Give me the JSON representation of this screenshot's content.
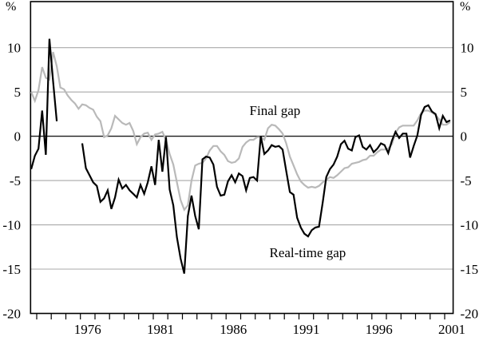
{
  "chart_data": {
    "type": "line",
    "title": "",
    "y_axis": {
      "unit_label": "%",
      "ticks": [
        10,
        5,
        0,
        -5,
        -10,
        -15,
        -20
      ],
      "lim": [
        -20,
        15.2
      ],
      "gridlines": true,
      "labels_on_both_sides": true
    },
    "x_axis": {
      "lim": [
        1972.58,
        2001.58
      ],
      "tick_start_year": 1973,
      "tick_end_year": 2001,
      "tick_interval": 1,
      "labeled_years": [
        1976,
        1981,
        1986,
        1991,
        1996,
        2001
      ]
    },
    "x_step_years": 0.25,
    "frame_color": "#000000",
    "gridline_color": "#a9a9a9",
    "zero_line_color": "#1c1c1c",
    "series": [
      {
        "name": "Final gap",
        "color": "#b9b9b9",
        "width": 2.2,
        "segments": [
          {
            "x_start": 1972.625,
            "values": [
              5.0,
              4.0,
              5.2,
              7.8,
              6.6,
              6.4,
              9.5,
              7.9,
              5.5,
              5.3,
              4.6,
              4.1,
              3.7,
              3.1,
              3.6,
              3.5,
              3.2,
              3.0,
              2.2,
              1.7,
              -0.1,
              0.1,
              0.9,
              2.3,
              1.9,
              1.5,
              1.3,
              1.5,
              0.6,
              -0.9,
              -0.1,
              0.3,
              0.4,
              -0.4,
              0.2,
              0.3,
              0.5,
              -0.4,
              -2.0,
              -3.2,
              -5.2,
              -7.2,
              -8.3,
              -7.8,
              -5.0,
              -3.3,
              -3.1,
              -3.0,
              -2.5,
              -1.6,
              -1.1,
              -1.1,
              -1.7,
              -2.1,
              -2.8,
              -3.0,
              -2.9,
              -2.5,
              -1.2,
              -0.7,
              -0.4,
              -0.4,
              -0.1,
              -0.1,
              -0.4,
              0.9,
              1.3,
              1.2,
              0.8,
              0.3,
              -0.8,
              -2.3,
              -3.3,
              -4.3,
              -5.1,
              -5.5,
              -5.8,
              -5.7,
              -5.8,
              -5.6,
              -5.2,
              -4.9,
              -4.6,
              -4.7,
              -4.4,
              -4.0,
              -3.6,
              -3.5,
              -3.1,
              -3.0,
              -2.9,
              -2.7,
              -2.6,
              -2.2,
              -2.2,
              -1.8,
              -1.5,
              -1.5,
              -1.4,
              -0.9,
              0.4,
              1.0,
              1.2,
              1.2,
              1.2,
              1.2,
              1.8,
              2.6,
              2.9,
              2.9,
              2.7,
              2.4,
              1.9,
              1.3,
              1.3,
              1.6
            ]
          }
        ]
      },
      {
        "name": "Real-time gap",
        "color": "#000000",
        "width": 2.2,
        "segments": [
          {
            "x_start": 1972.625,
            "values": [
              -3.7,
              -2.2,
              -1.4,
              2.9,
              -2.1,
              11.0,
              6.2,
              1.7
            ]
          },
          {
            "x_start": 1976.125,
            "values": [
              -0.8,
              -3.6,
              -4.4,
              -5.2,
              -5.6,
              -7.4,
              -7.0,
              -6.1,
              -8.2,
              -6.9,
              -4.9,
              -5.9,
              -5.5,
              -6.1,
              -6.5,
              -6.9,
              -5.5,
              -6.5,
              -5.2,
              -3.4,
              -5.5,
              -0.4,
              -4.0,
              -0.1,
              -6.0,
              -7.8,
              -11.4,
              -13.8,
              -15.5,
              -9.0,
              -6.7,
              -9.0,
              -10.5,
              -2.6,
              -2.3,
              -2.4,
              -3.2,
              -5.7,
              -6.7,
              -6.6,
              -5.1,
              -4.4,
              -5.2,
              -4.2,
              -4.5,
              -6.1,
              -4.7,
              -4.6,
              -5.0,
              0.0,
              -2.0,
              -1.6,
              -1.0,
              -1.2,
              -1.1,
              -1.5,
              -3.9,
              -6.3,
              -6.6,
              -9.2,
              -10.3,
              -11.0,
              -11.3,
              -10.6,
              -10.3,
              -10.2,
              -7.5,
              -4.6,
              -3.7,
              -3.2,
              -2.3,
              -0.9,
              -0.5,
              -1.4,
              -1.6,
              -0.1,
              0.1,
              -1.2,
              -1.5,
              -1.0,
              -1.8,
              -1.4,
              -0.8,
              -1.0,
              -1.9,
              -0.5,
              0.5,
              -0.2,
              0.3,
              0.3,
              -2.4,
              -1.1,
              0.1,
              2.4,
              3.3,
              3.5,
              2.8,
              2.5,
              0.9,
              2.3,
              1.6,
              1.8
            ]
          }
        ]
      }
    ],
    "annotations": [
      {
        "text": "Final gap",
        "x": 1989.35,
        "y": 2.9
      },
      {
        "text": "Real-time gap",
        "x": 1991.6,
        "y": -13.2
      }
    ]
  }
}
